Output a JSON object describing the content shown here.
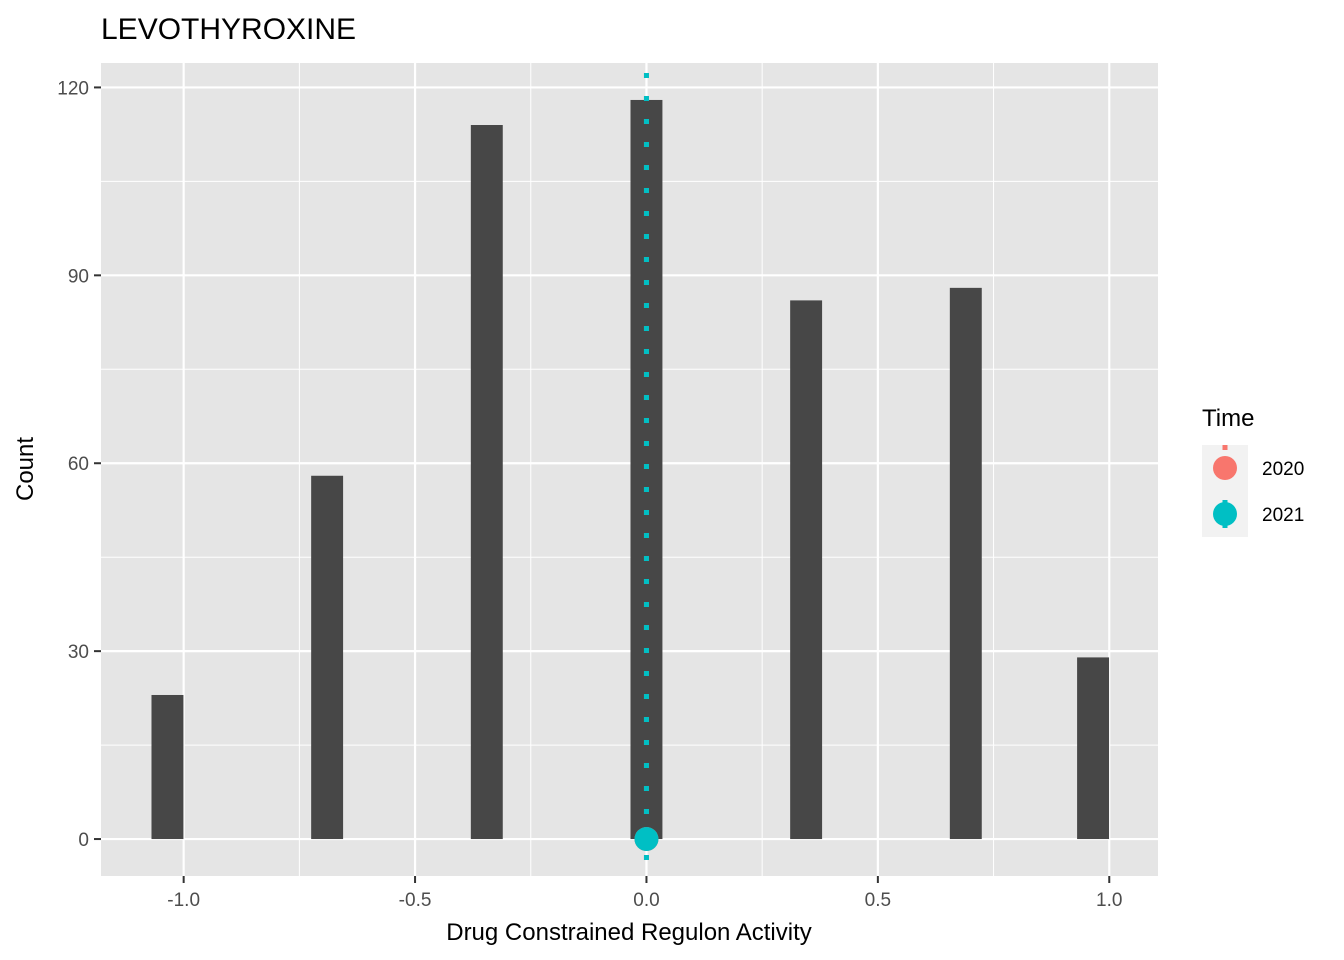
{
  "chart_data": {
    "type": "bar",
    "title": "LEVOTHYROXINE",
    "xlabel": "Drug Constrained Regulon Activity",
    "ylabel": "Count",
    "xlim": [
      -1.1786,
      1.1053
    ],
    "ylim": [
      -5.9,
      123.9
    ],
    "x_ticks": [
      -1.0,
      -0.5,
      0.0,
      0.5,
      1.0
    ],
    "x_tick_labels": [
      "-1.0",
      "-0.5",
      "0.0",
      "0.5",
      "1.0"
    ],
    "y_ticks": [
      0,
      30,
      60,
      90,
      120
    ],
    "y_tick_labels": [
      "0",
      "30",
      "60",
      "90",
      "120"
    ],
    "bar_width": 0.069,
    "bars": [
      {
        "x": -1.035,
        "count": 23
      },
      {
        "x": -0.69,
        "count": 58
      },
      {
        "x": -0.345,
        "count": 114
      },
      {
        "x": 0.0,
        "count": 118
      },
      {
        "x": 0.345,
        "count": 86
      },
      {
        "x": 0.69,
        "count": 88
      },
      {
        "x": 0.965,
        "count": 29
      }
    ],
    "bar_color": "#474747",
    "reference_lines": [
      {
        "name": "2020",
        "x": 0.0,
        "color": "#F8766D"
      },
      {
        "name": "2021",
        "x": 0.0,
        "color": "#00BFC4"
      }
    ],
    "points": [
      {
        "name": "2020",
        "x": 0.0,
        "y": 0,
        "color": "#F8766D"
      },
      {
        "name": "2021",
        "x": 0.0,
        "y": 0,
        "color": "#00BFC4"
      }
    ],
    "legend": {
      "title": "Time",
      "placement": "right",
      "entries": [
        {
          "label": "2020",
          "color": "#F8766D"
        },
        {
          "label": "2021",
          "color": "#00BFC4"
        }
      ]
    },
    "grid": true,
    "panel_background": "#E5E5E5"
  }
}
